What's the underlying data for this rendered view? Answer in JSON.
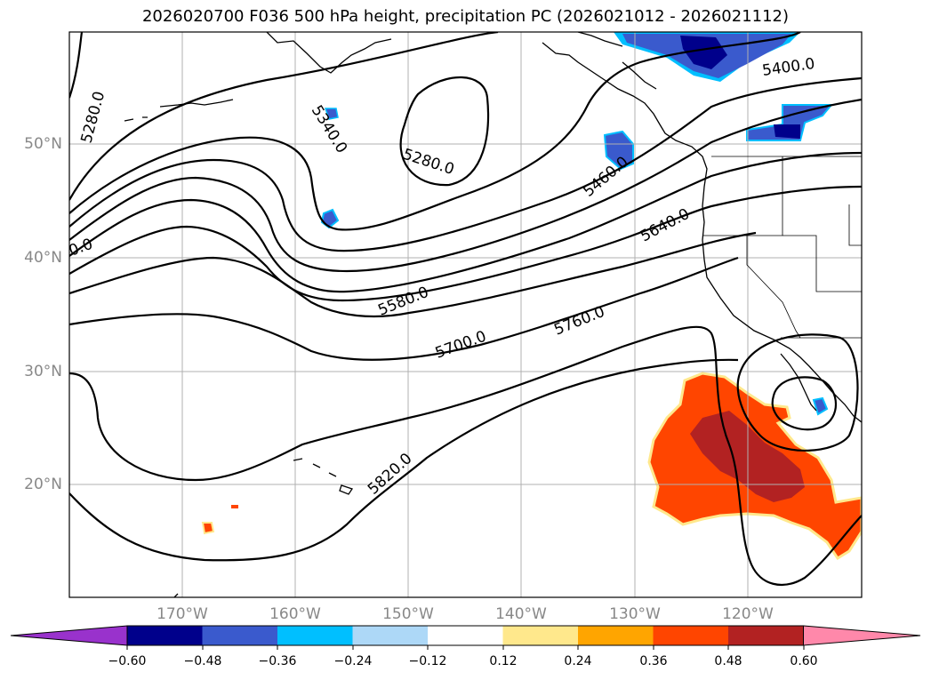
{
  "title": "2026020700 F036 500 hPa height, precipitation PC (2026021012 - 2026021112)",
  "lat_labels": [
    "50°N",
    "40°N",
    "30°N",
    "20°N"
  ],
  "lon_labels": [
    "170°W",
    "160°W",
    "150°W",
    "140°W",
    "130°W",
    "120°W"
  ],
  "contour_labels": {
    "c5280a": "5280.0",
    "c5340": "5340.0",
    "c5280b": "5280.0",
    "c5460": "5460.0",
    "c5400": "5400.0",
    "c5640": "5640.0",
    "c5580": "5580.0",
    "c5700": "5700.0",
    "c5760": "5760.0",
    "c5820": "5820.0",
    "cleft": "0.0"
  },
  "colorbar": {
    "ticks": [
      "−0.60",
      "−0.48",
      "−0.36",
      "−0.24",
      "−0.12",
      "0.12",
      "0.24",
      "0.36",
      "0.48",
      "0.60"
    ],
    "colors": [
      "#9932cc",
      "#00008b",
      "#3a5acd",
      "#00bfff",
      "#add8f7",
      "#ffffff",
      "#ffe88c",
      "#ffa500",
      "#ff4500",
      "#b22222",
      "#ff88aa"
    ]
  }
}
